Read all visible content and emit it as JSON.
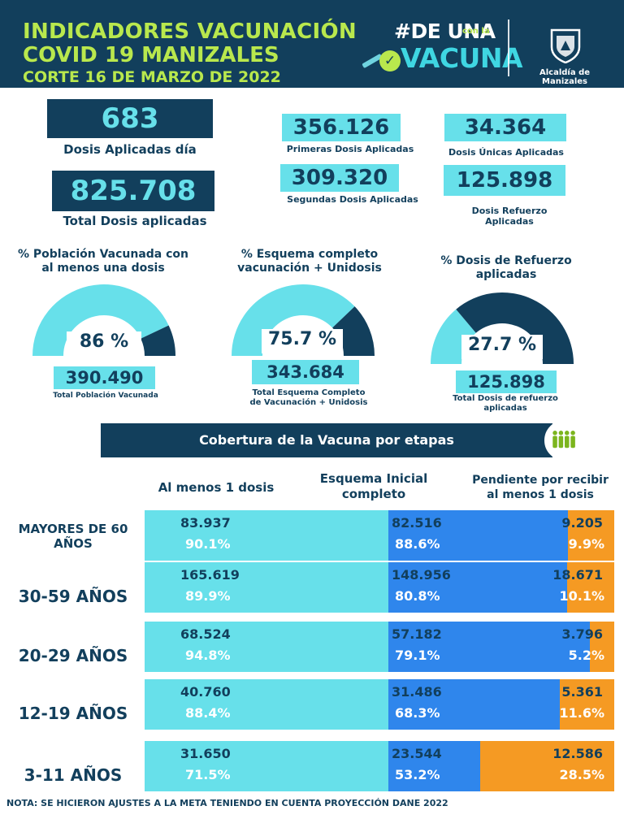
{
  "header": {
    "title_line1": "INDICADORES VACUNACIÓN",
    "title_line2": "COVID 19 MANIZALES",
    "title_line3": "CORTE 16 DE MARZO  DE 2022",
    "campaign_line1": "#DE UNA",
    "campaign_con": "con la",
    "campaign_line2": "VACUNA",
    "org": "Alcaldía de Manizales"
  },
  "kpis": {
    "dosis_dia": {
      "value": "683",
      "label": "Dosis Aplicadas día"
    },
    "total_dosis": {
      "value": "825.708",
      "label": "Total Dosis aplicadas"
    },
    "primeras": {
      "value": "356.126",
      "label": "Primeras Dosis Aplicadas"
    },
    "segundas": {
      "value": "309.320",
      "label": "Segundas Dosis Aplicadas"
    },
    "unicas": {
      "value": "34.364",
      "label": "Dosis Únicas Aplicadas"
    },
    "refuerzo": {
      "value": "125.898",
      "label_l1": "Dosis Refuerzo",
      "label_l2": "Aplicadas"
    }
  },
  "gauges": [
    {
      "title_l1": "% Población Vacunada con",
      "title_l2": "al menos una dosis",
      "pct_text": "86 %",
      "pct": 86,
      "value": "390.490",
      "sub_l1": "Total Población Vacunada",
      "sub_l2": ""
    },
    {
      "title_l1": "% Esquema completo",
      "title_l2": "vacunación + Unidosis",
      "pct_text": "75.7 %",
      "pct": 75.7,
      "value": "343.684",
      "sub_l1": "Total Esquema Completo",
      "sub_l2": "de Vacunación + Unidosis"
    },
    {
      "title_l1": "% Dosis de Refuerzo",
      "title_l2": "aplicadas",
      "pct_text": "27.7 %",
      "pct": 27.7,
      "value": "125.898",
      "sub_l1": "Total Dosis de refuerzo",
      "sub_l2": "aplicadas"
    }
  ],
  "colors": {
    "dark": "#123f5c",
    "light": "#67e0ea",
    "blue": "#2f86ec",
    "orange": "#f59a23",
    "lime": "#b9e84d"
  },
  "coverage": {
    "banner": "Cobertura de la Vacuna por etapas",
    "col1": "Al menos 1 dosis",
    "col2_l1": "Esquema Inicial",
    "col2_l2": "completo",
    "col3_l1": "Pendiente por recibir",
    "col3_l2": "al menos 1 dosis",
    "rows": [
      {
        "label_l1": "MAYORES DE 60",
        "label_l2": "AÑOS",
        "a": "83.937",
        "ap": "90.1%",
        "b": "82.516",
        "bp": "88.6%",
        "c": "9.205",
        "cp": "9.9%",
        "a_frac": 0.901,
        "b_frac": 0.886,
        "c_frac": 0.099
      },
      {
        "label_l1": "30-59 AÑOS",
        "label_l2": "",
        "a": "165.619",
        "ap": "89.9%",
        "b": "148.956",
        "bp": "80.8%",
        "c": "18.671",
        "cp": "10.1%",
        "a_frac": 0.899,
        "b_frac": 0.808,
        "c_frac": 0.101
      },
      {
        "label_l1": "20-29 AÑOS",
        "label_l2": "",
        "a": "68.524",
        "ap": "94.8%",
        "b": "57.182",
        "bp": "79.1%",
        "c": "3.796",
        "cp": "5.2%",
        "a_frac": 0.948,
        "b_frac": 0.791,
        "c_frac": 0.052
      },
      {
        "label_l1": "12-19 AÑOS",
        "label_l2": "",
        "a": "40.760",
        "ap": "88.4%",
        "b": "31.486",
        "bp": "68.3%",
        "c": "5.361",
        "cp": "11.6%",
        "a_frac": 0.884,
        "b_frac": 0.683,
        "c_frac": 0.116
      },
      {
        "label_l1": "3-11 AÑOS",
        "label_l2": "",
        "a": "31.650",
        "ap": "71.5%",
        "b": "23.544",
        "bp": "53.2%",
        "c": "12.586",
        "cp": "28.5%",
        "a_frac": 0.715,
        "b_frac": 0.532,
        "c_frac": 0.285
      }
    ]
  },
  "note": "NOTA: SE HICIERON AJUSTES A LA META TENIENDO EN CUENTA PROYECCIÓN DANE 2022"
}
